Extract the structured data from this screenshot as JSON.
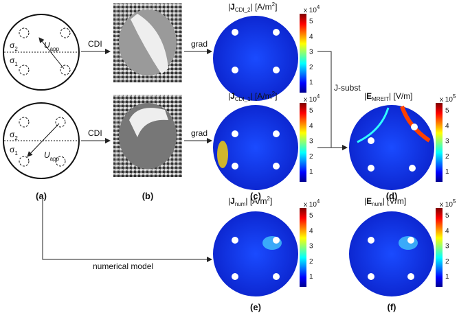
{
  "schematic": {
    "sigma": [
      "σ",
      "σ",
      "σ",
      "σ"
    ],
    "sigma_sub": [
      "2",
      "1",
      "2",
      "1"
    ],
    "u": [
      "U",
      "U"
    ],
    "u_sub": [
      "app",
      "app"
    ]
  },
  "arrows": [
    "CDI",
    "CDI",
    "grad",
    "grad",
    "J-subst",
    "numerical model"
  ],
  "panel_labels": [
    "(a)",
    "(b)",
    "(c)",
    "(d)",
    "(e)",
    "(f)"
  ],
  "maps": [
    {
      "symbol": "J",
      "subscript": "CDI_2",
      "unit": "[A/m",
      "unit_sup": "2",
      "unit_end": "]",
      "scale": "x 10",
      "scale_exp": "4",
      "colorbar_ticks": [
        1,
        2,
        3,
        4,
        5
      ]
    },
    {
      "symbol": "J",
      "subscript": "CDI_1",
      "unit": "[A/m",
      "unit_sup": "2",
      "unit_end": "]",
      "scale": "x 10",
      "scale_exp": "4",
      "colorbar_ticks": [
        1,
        2,
        3,
        4,
        5
      ]
    },
    {
      "symbol": "E",
      "subscript": "MREIT",
      "unit": "[V/m]",
      "scale": "x 10",
      "scale_exp": "5",
      "colorbar_ticks": [
        1,
        2,
        3,
        4,
        5
      ]
    },
    {
      "symbol": "J",
      "subscript": "num",
      "unit": "[A/m",
      "unit_sup": "2",
      "unit_end": "]",
      "scale": "x 10",
      "scale_exp": "4",
      "colorbar_ticks": [
        1,
        2,
        3,
        4,
        5
      ]
    },
    {
      "symbol": "E",
      "subscript": "num",
      "unit": "[V/m]",
      "scale": "x 10",
      "scale_exp": "5",
      "colorbar_ticks": [
        1,
        2,
        3,
        4,
        5
      ]
    }
  ]
}
